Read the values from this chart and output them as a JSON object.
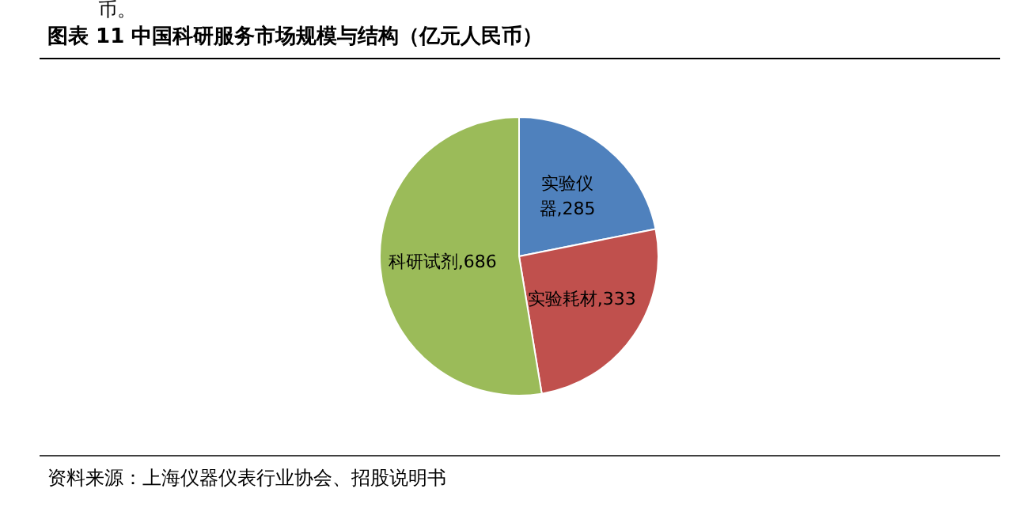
{
  "chart_data": {
    "type": "pie",
    "title": "图表 11 中国科研服务市场规模与结构（亿元人民币）",
    "categories": [
      "实验仪器",
      "实验耗材",
      "科研试剂"
    ],
    "values": [
      285,
      333,
      686
    ],
    "value_labels": [
      ",285",
      ",333",
      ",686"
    ],
    "colors": [
      "#4f81bd",
      "#c0504d",
      "#9bbb59"
    ],
    "annotations": [
      "币。",
      "资料来源：上海仪器仪表行业协会、招股说明书"
    ]
  }
}
